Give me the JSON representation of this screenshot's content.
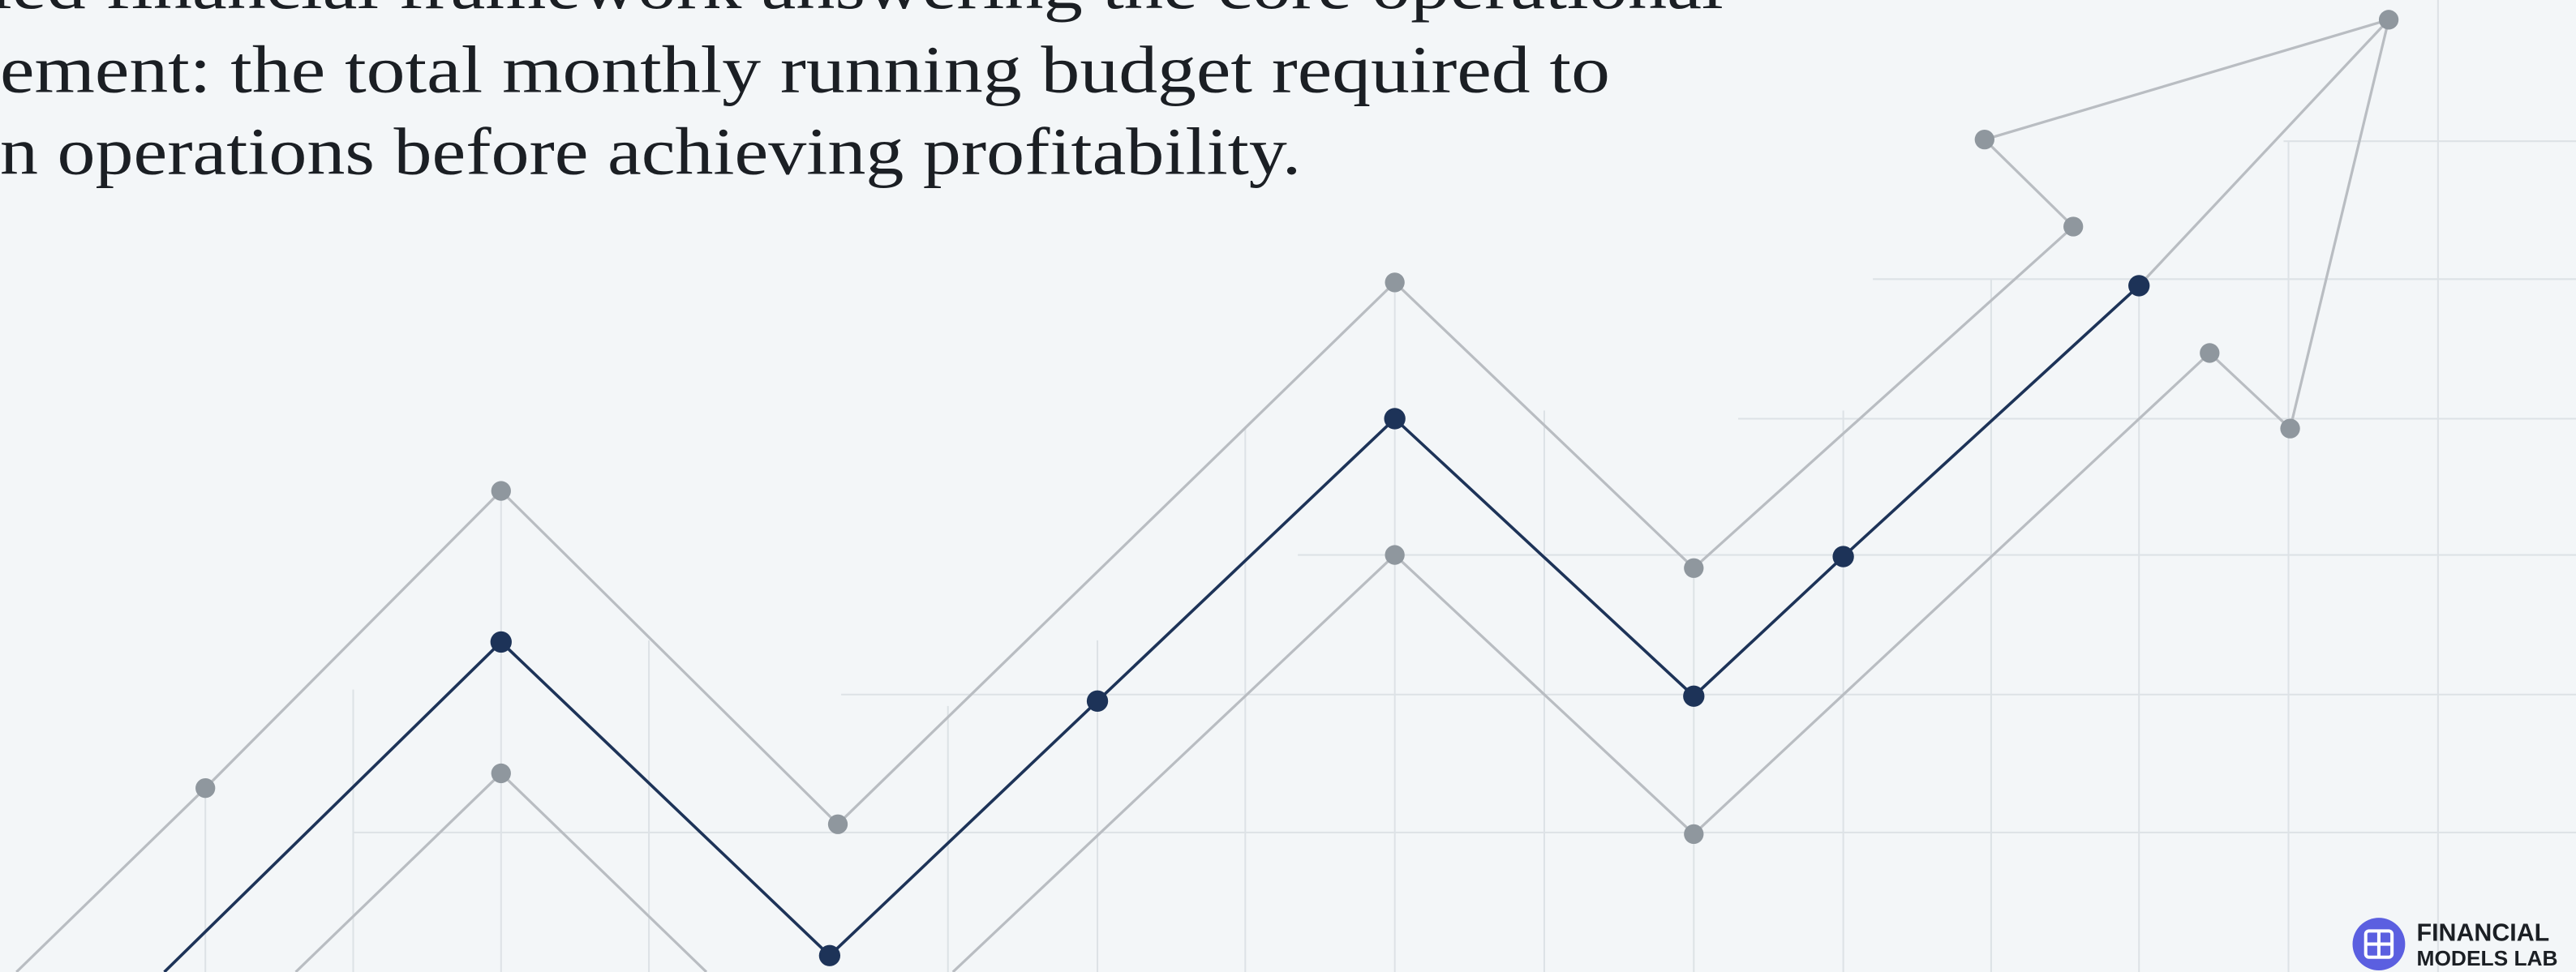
{
  "intro": {
    "lines": [
      "ied financial framework answering the core operational",
      "ement: the total monthly running budget required to",
      "n operations before achieving profitability."
    ]
  },
  "logo": {
    "line1": "FINANCIAL",
    "line2": "MODELS LAB"
  }
}
